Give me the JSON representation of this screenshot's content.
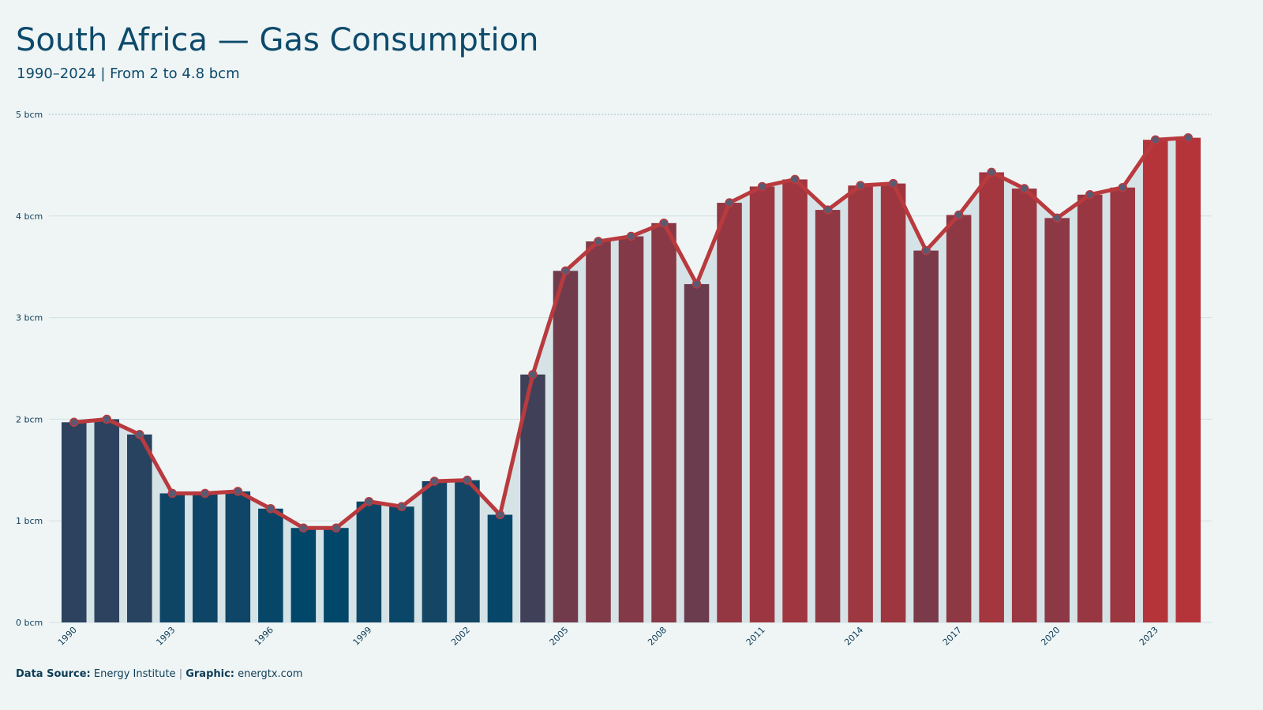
{
  "chart_data": {
    "type": "bar-line",
    "title": "South Africa — Gas Consumption",
    "subtitle": "1990–2024 | From 2 to 4.8 bcm",
    "categories": [
      "1990",
      null,
      null,
      "1993",
      null,
      null,
      "1996",
      null,
      null,
      "1999",
      null,
      null,
      "2002",
      null,
      null,
      "2005",
      null,
      null,
      "2008",
      null,
      null,
      "2011",
      null,
      null,
      "2014",
      null,
      null,
      "2017",
      null,
      null,
      "2020",
      null,
      null,
      "2023",
      null
    ],
    "values": [
      1.97,
      2.0,
      1.85,
      1.27,
      1.27,
      1.29,
      1.12,
      0.93,
      0.93,
      1.19,
      1.14,
      1.39,
      1.4,
      1.06,
      2.44,
      3.46,
      3.75,
      3.8,
      3.93,
      3.33,
      4.13,
      4.29,
      4.36,
      4.06,
      4.3,
      4.32,
      3.66,
      4.01,
      4.43,
      4.27,
      3.98,
      4.21,
      4.28,
      4.75,
      4.77
    ],
    "color_low": "#00476a",
    "color_high": "#b5343a",
    "line_color": "#b93a3e",
    "ylim": [
      0,
      5
    ],
    "yticks": [
      {
        "value": 0,
        "label": "0 bcm"
      },
      {
        "value": 1,
        "label": "1 bcm"
      },
      {
        "value": 2,
        "label": "2 bcm"
      },
      {
        "value": 3,
        "label": "3 bcm"
      },
      {
        "value": 4,
        "label": "4 bcm"
      },
      {
        "value": 5,
        "label": "5 bcm"
      }
    ],
    "grid": true,
    "footer": {
      "source_label": "Data Source:",
      "source": "Energy Institute",
      "separator": "|",
      "graphic_label": "Graphic:",
      "graphic": "energtx.com"
    }
  }
}
